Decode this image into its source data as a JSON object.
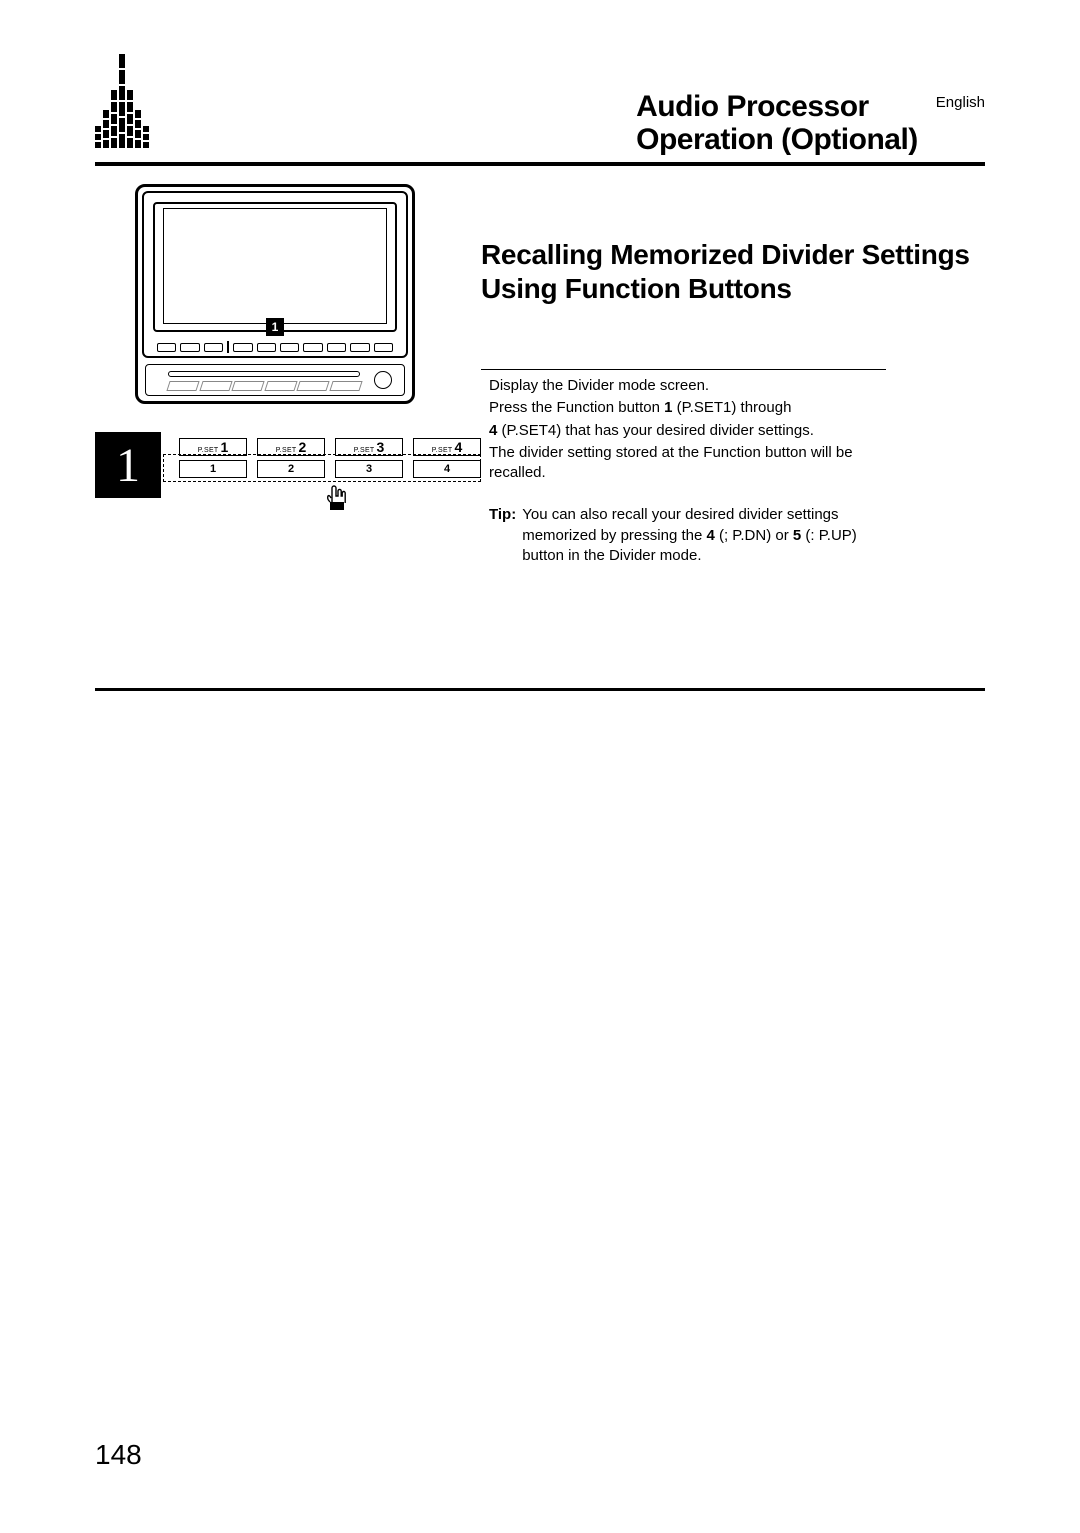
{
  "header": {
    "title_line1": "Audio Processor",
    "title_line2": "Operation (Optional)",
    "language": "English"
  },
  "section_heading": "Recalling Memorized Divider Settings Using Function Buttons",
  "device_marker": "1",
  "step": {
    "number": "1",
    "pset_label": "P.SET",
    "presets": [
      "1",
      "2",
      "3",
      "4"
    ],
    "bottom_numbers": [
      "1",
      "2",
      "3",
      "4"
    ]
  },
  "instructions": {
    "line1": "Display the Divider mode screen.",
    "line2a": "Press the Function button ",
    "bold1": "1",
    "line2b": " (P.SET1) through",
    "bold4": "4",
    "line2c": " (P.SET4) that has your desired divider settings.",
    "line3": "The divider setting stored at the Function button will be recalled."
  },
  "tip": {
    "label": "Tip:",
    "text_a": "You can also recall your desired divider settings memorized by pressing the ",
    "bold4": "4",
    "text_b": " (; P.DN) or ",
    "bold5": "5",
    "text_c": " (: P.UP) button in the Divider mode."
  },
  "page_number": "148",
  "logo_heights": [
    [
      6,
      6,
      6
    ],
    [
      8,
      8,
      8,
      8
    ],
    [
      10,
      10,
      10,
      10,
      10
    ],
    [
      14,
      14,
      14,
      14,
      14,
      14
    ],
    [
      10,
      10,
      10,
      10,
      10
    ],
    [
      8,
      8,
      8,
      8
    ],
    [
      6,
      6,
      6
    ]
  ]
}
